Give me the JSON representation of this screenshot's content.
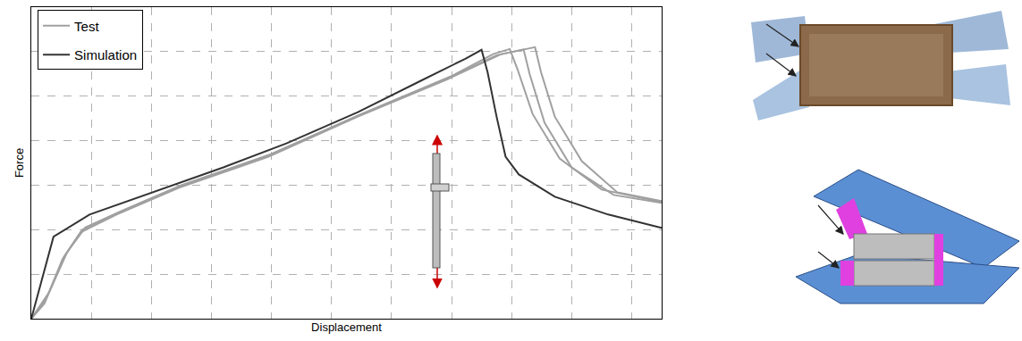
{
  "chart_data": {
    "type": "line",
    "x_label": "Displacement",
    "y_label": "Force",
    "xlim": [
      0,
      10.5
    ],
    "xticks": [
      0,
      1,
      2,
      3,
      4,
      5,
      6,
      7,
      8,
      9,
      10
    ],
    "ylim": [
      0,
      7
    ],
    "yticks": [
      0,
      1,
      2,
      3,
      4,
      5,
      6,
      7
    ],
    "grid": true,
    "tick_labels": false,
    "legend": "top left",
    "series": [
      {
        "name": "Test",
        "color": "#a0a0a0",
        "x": [
          0,
          0.22,
          0.52,
          0.82,
          1.42,
          2.46,
          3.95,
          5.44,
          6.93,
          7.82,
          8.39,
          8.49,
          8.72,
          9.17,
          9.76,
          10.5
        ],
        "values": [
          0,
          0.34,
          1.34,
          1.94,
          2.34,
          2.94,
          3.64,
          4.54,
          5.38,
          5.94,
          6.1,
          5.54,
          4.54,
          3.54,
          2.84,
          2.64
        ]
      },
      {
        "name": "Test",
        "color": "#a0a0a0",
        "x": [
          0,
          0.3,
          0.6,
          0.9,
          1.5,
          2.5,
          4.0,
          5.5,
          7.0,
          7.7,
          7.97,
          8.1,
          8.35,
          8.8,
          9.5,
          10.5
        ],
        "values": [
          0,
          0.6,
          1.5,
          2.05,
          2.42,
          3.0,
          3.7,
          4.6,
          5.45,
          5.95,
          6.06,
          5.6,
          4.6,
          3.6,
          2.9,
          2.62
        ]
      },
      {
        "name": "Test",
        "color": "#a0a0a0",
        "x": [
          0,
          0.25,
          0.55,
          0.85,
          1.45,
          2.45,
          3.95,
          5.45,
          6.95,
          7.75,
          8.2,
          8.3,
          8.55,
          9.0,
          9.7,
          10.5
        ],
        "values": [
          0,
          0.45,
          1.4,
          2.0,
          2.38,
          2.96,
          3.66,
          4.56,
          5.4,
          5.92,
          6.05,
          5.5,
          4.4,
          3.4,
          2.78,
          2.6
        ]
      },
      {
        "name": "Simulation",
        "color": "#333333",
        "x": [
          0,
          0.37,
          0.97,
          2.01,
          3.2,
          4.25,
          5.44,
          6.48,
          7.23,
          7.5,
          7.6,
          7.75,
          7.9,
          8.12,
          8.72,
          9.61,
          10.5
        ],
        "values": [
          0,
          1.84,
          2.34,
          2.84,
          3.4,
          3.94,
          4.64,
          5.34,
          5.84,
          6.04,
          5.54,
          4.54,
          3.64,
          3.24,
          2.74,
          2.34,
          2.04
        ]
      }
    ]
  }
}
